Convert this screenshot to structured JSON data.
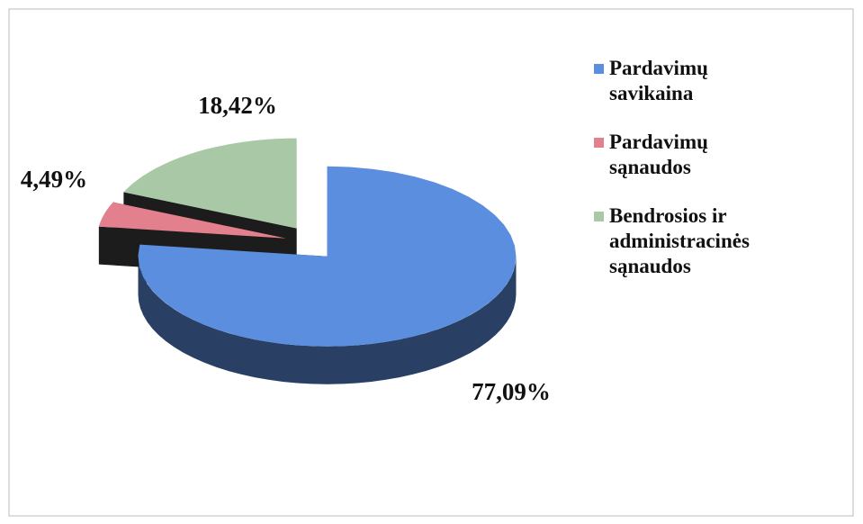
{
  "chart_data": {
    "type": "pie3d",
    "categories": [
      "Pardavimų savikaina",
      "Pardavimų sąnaudos",
      "Bendrosios ir administracinės sąnaudos"
    ],
    "values": [
      77.09,
      4.49,
      18.42
    ],
    "value_labels": [
      "77,09%",
      "4,49%",
      "18,42%"
    ],
    "colors": [
      "#5b8ede",
      "#e3808e",
      "#a9c9a6"
    ],
    "legend": "right"
  }
}
